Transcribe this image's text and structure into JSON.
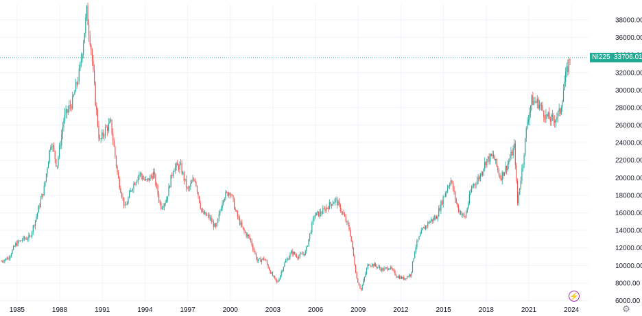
{
  "chart_data": {
    "type": "candlestick",
    "symbol": "NI225",
    "last_price": "33706.01",
    "colors": {
      "up": "#26a69a",
      "down": "#ef5350",
      "last_price_line": "#22ab94",
      "grid": "#f0f3fa",
      "text": "#131722"
    },
    "x_range": [
      1983.8,
      2025.2
    ],
    "ylim": [
      5800,
      39800
    ],
    "y_ticks": [
      "6000.00",
      "8000.00",
      "10000.00",
      "12000.00",
      "14000.00",
      "16000.00",
      "18000.00",
      "20000.00",
      "22000.00",
      "24000.00",
      "26000.00",
      "28000.00",
      "30000.00",
      "32000.00",
      "34000.00",
      "36000.00",
      "38000.00"
    ],
    "x_ticks": [
      "1985",
      "1988",
      "1991",
      "1994",
      "1997",
      "2000",
      "2003",
      "2006",
      "2009",
      "2012",
      "2015",
      "2018",
      "2021",
      "2024"
    ],
    "x": [
      1983.9,
      1984.4,
      1984.9,
      1985.4,
      1985.9,
      1986.4,
      1986.9,
      1987.4,
      1987.8,
      1988.3,
      1988.9,
      1989.4,
      1989.9,
      1990.2,
      1990.5,
      1990.8,
      1991.2,
      1991.6,
      1992.1,
      1992.6,
      1993.1,
      1993.6,
      1994.1,
      1994.6,
      1995.1,
      1995.5,
      1996.0,
      1996.5,
      1997.0,
      1997.5,
      1998.0,
      1998.5,
      1999.0,
      1999.5,
      2000.0,
      2000.4,
      2000.9,
      2001.4,
      2001.9,
      2002.4,
      2002.9,
      2003.3,
      2003.8,
      2004.3,
      2004.8,
      2005.3,
      2005.9,
      2006.4,
      2006.9,
      2007.4,
      2007.9,
      2008.4,
      2008.9,
      2009.2,
      2009.7,
      2010.2,
      2010.7,
      2011.2,
      2011.7,
      2012.2,
      2012.7,
      2013.0,
      2013.5,
      2014.0,
      2014.5,
      2015.0,
      2015.5,
      2016.0,
      2016.5,
      2017.0,
      2017.5,
      2018.0,
      2018.5,
      2019.0,
      2019.5,
      2020.0,
      2020.2,
      2020.6,
      2020.9,
      2021.2,
      2021.7,
      2022.2,
      2022.7,
      2023.2,
      2023.5,
      2023.9
    ],
    "values": [
      10500,
      10900,
      12400,
      13000,
      13200,
      15800,
      18800,
      24300,
      21300,
      26800,
      28700,
      32100,
      38900,
      35000,
      29000,
      24000,
      25500,
      26200,
      20000,
      16500,
      19000,
      20500,
      19500,
      20500,
      16700,
      17500,
      21200,
      21300,
      18500,
      20000,
      16000,
      15500,
      14200,
      17800,
      18500,
      16000,
      14000,
      13000,
      10500,
      10800,
      9000,
      8000,
      10200,
      11500,
      11000,
      11500,
      15700,
      16000,
      16800,
      17500,
      16000,
      14000,
      8500,
      7200,
      10200,
      10000,
      9500,
      9800,
      8800,
      8500,
      9000,
      12000,
      14000,
      15000,
      15500,
      17800,
      19800,
      16500,
      15400,
      19000,
      20000,
      22000,
      22500,
      20000,
      21500,
      23600,
      17000,
      22000,
      26500,
      28800,
      28500,
      27000,
      26500,
      27500,
      30800,
      33706
    ]
  },
  "ui": {
    "bolt_icon": "⚡",
    "settings_icon": "⚙"
  }
}
